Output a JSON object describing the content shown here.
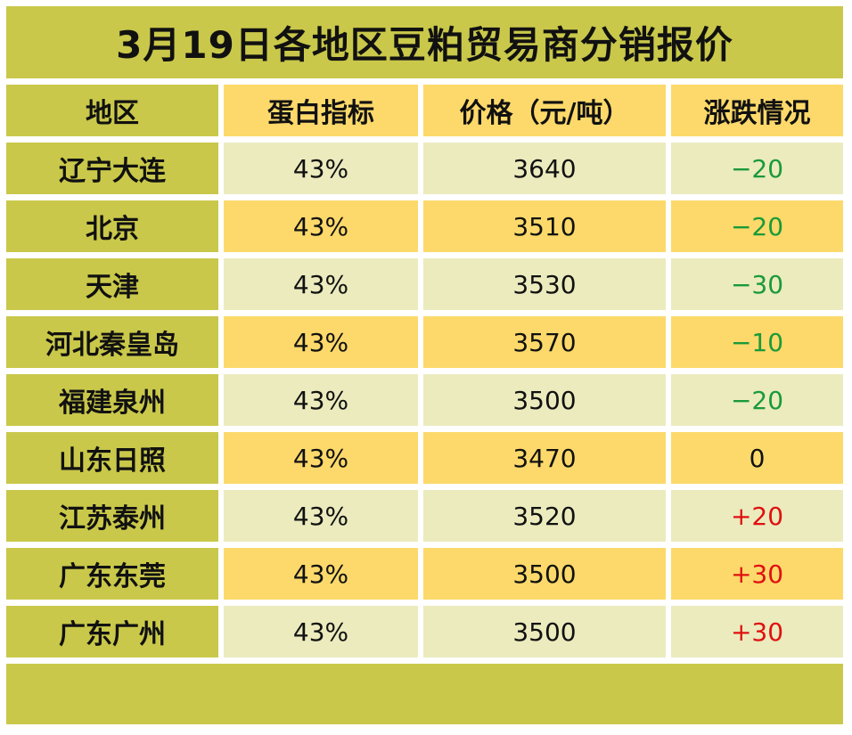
{
  "title": "3月19日各地区豆粕贸易商分销报价",
  "headers": {
    "region": "地区",
    "protein": "蛋白指标",
    "price": "价格（元/吨）",
    "change": "涨跌情况"
  },
  "rows": [
    {
      "region": "辽宁大连",
      "protein": "43%",
      "price": "3640",
      "change": "−20",
      "trend": "down"
    },
    {
      "region": "北京",
      "protein": "43%",
      "price": "3510",
      "change": "−20",
      "trend": "down"
    },
    {
      "region": "天津",
      "protein": "43%",
      "price": "3530",
      "change": "−30",
      "trend": "down"
    },
    {
      "region": "河北秦皇岛",
      "protein": "43%",
      "price": "3570",
      "change": "−10",
      "trend": "down"
    },
    {
      "region": "福建泉州",
      "protein": "43%",
      "price": "3500",
      "change": "−20",
      "trend": "down"
    },
    {
      "region": "山东日照",
      "protein": "43%",
      "price": "3470",
      "change": "0",
      "trend": "flat"
    },
    {
      "region": "江苏泰州",
      "protein": "43%",
      "price": "3520",
      "change": "+20",
      "trend": "up"
    },
    {
      "region": "广东东莞",
      "protein": "43%",
      "price": "3500",
      "change": "+30",
      "trend": "up"
    },
    {
      "region": "广东广州",
      "protein": "43%",
      "price": "3500",
      "change": "+30",
      "trend": "up"
    }
  ],
  "colors": {
    "olive": "#c9c84a",
    "yellow": "#fcd96a",
    "pale": "#ebebbe",
    "down": "#1a9a3a",
    "up": "#e01010"
  }
}
